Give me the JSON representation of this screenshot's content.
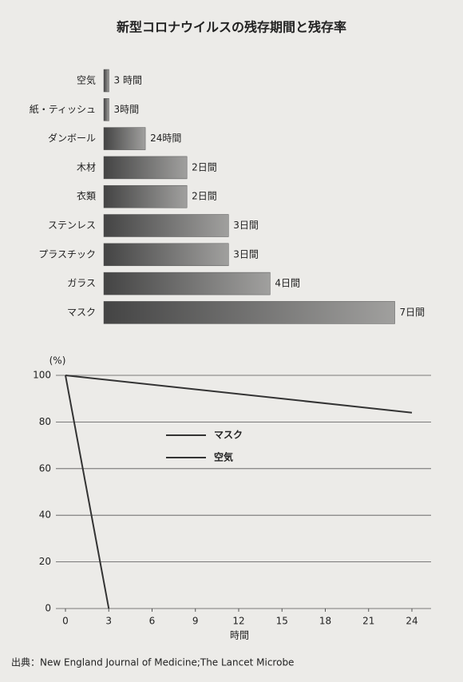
{
  "chart_data": [
    {
      "type": "bar",
      "orientation": "horizontal",
      "title": "新型コロナウイルスの残存期間と残存率",
      "categories": [
        "空気",
        "紙・ティッシュ",
        "ダンボール",
        "木材",
        "衣類",
        "ステンレス",
        "プラスチック",
        "ガラス",
        "マスク"
      ],
      "values": [
        3,
        3,
        24,
        48,
        48,
        72,
        72,
        96,
        168
      ],
      "value_labels": [
        "3 時間",
        "3時間",
        "24時間",
        "2日間",
        "2日間",
        "3日間",
        "3日間",
        "4日間",
        "7日間"
      ],
      "color": "#444444"
    },
    {
      "type": "line",
      "ylabel": "(%)",
      "xlabel": "時間",
      "series": [
        {
          "name": "マスク",
          "color": "#333333",
          "x": [
            0,
            24
          ],
          "values": [
            100,
            84
          ]
        },
        {
          "name": "空気",
          "color": "#333333",
          "x": [
            0,
            3
          ],
          "values": [
            100,
            0
          ]
        }
      ],
      "xlim": [
        0,
        24
      ],
      "xticks": [
        0,
        3,
        6,
        9,
        12,
        15,
        18,
        21,
        24
      ],
      "ylim": [
        0,
        100
      ],
      "yticks": [
        0,
        20,
        40,
        60,
        80,
        100
      ],
      "grid": true
    }
  ],
  "source": "出典：New England Journal of Medicine;The Lancet Microbe"
}
